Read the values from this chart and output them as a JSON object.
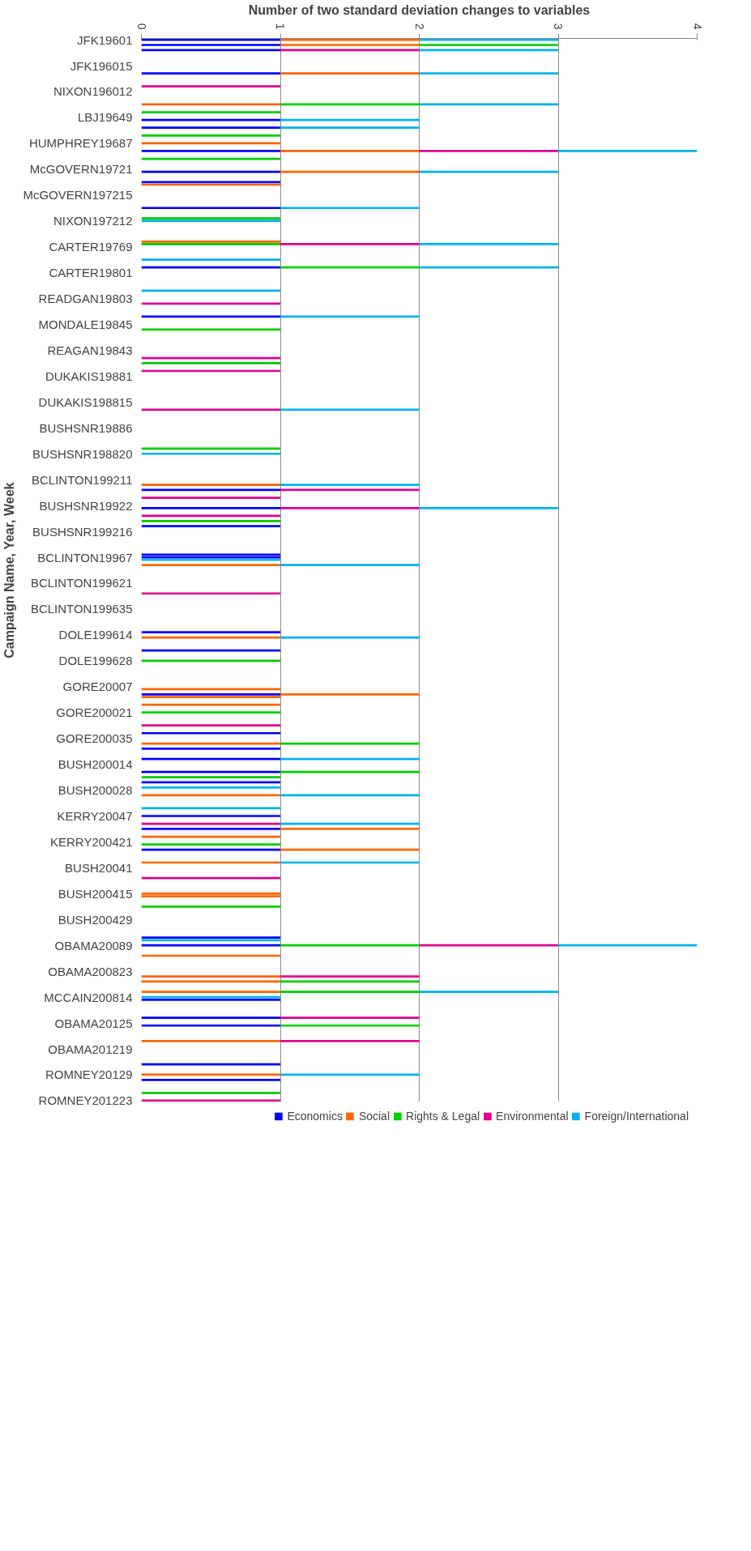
{
  "chart_data": {
    "type": "bar",
    "orientation": "horizontal",
    "stacked": true,
    "xlabel": "Number of two standard deviation changes to variables",
    "ylabel": "Campaign Name, Year, Week",
    "xlim": [
      0,
      4
    ],
    "xticks": [
      0,
      1,
      2,
      3,
      4
    ],
    "grid": "x",
    "legend": "bottom",
    "categories": [
      "JFK19601",
      null,
      null,
      null,
      null,
      null,
      null,
      null,
      null,
      null,
      "JFK196015",
      null,
      null,
      null,
      null,
      null,
      null,
      null,
      null,
      null,
      "NIXON196012",
      null,
      null,
      null,
      null,
      null,
      null,
      null,
      null,
      null,
      "LBJ19649",
      null,
      null,
      null,
      null,
      null,
      null,
      null,
      null,
      null,
      "HUMPHREY19687",
      null,
      null,
      null,
      null,
      null,
      null,
      null,
      null,
      null,
      "McGOVERN19721",
      null,
      null,
      null,
      null,
      null,
      null,
      null,
      null,
      null,
      "McGOVERN197215",
      null,
      null,
      null,
      null,
      null,
      null,
      null,
      null,
      null,
      "NIXON197212",
      null,
      null,
      null,
      null,
      null,
      null,
      null,
      null,
      null,
      "CARTER19769",
      null,
      null,
      null,
      null,
      null,
      null,
      null,
      null,
      null,
      "CARTER19801",
      null,
      null,
      null,
      null,
      null,
      null,
      null,
      null,
      null,
      "READGAN19803",
      null,
      null,
      null,
      null,
      null,
      null,
      null,
      null,
      null,
      "MONDALE19845",
      null,
      null,
      null,
      null,
      null,
      null,
      null,
      null,
      null,
      "REAGAN19843",
      null,
      null,
      null,
      null,
      null,
      null,
      null,
      null,
      null,
      "DUKAKIS19881",
      null,
      null,
      null,
      null,
      null,
      null,
      null,
      null,
      null,
      "DUKAKIS198815",
      null,
      null,
      null,
      null,
      null,
      null,
      null,
      null,
      null,
      "BUSHSNR19886",
      null,
      null,
      null,
      null,
      null,
      null,
      null,
      null,
      null,
      "BUSHSNR198820",
      null,
      null,
      null,
      null,
      null,
      null,
      null,
      null,
      null,
      "BCLINTON199211",
      null,
      null,
      null,
      null,
      null,
      null,
      null,
      null,
      null,
      "BUSHSNR19922",
      null,
      null,
      null,
      null,
      null,
      null,
      null,
      null,
      null,
      "BUSHSNR199216",
      null,
      null,
      null,
      null,
      null,
      null,
      null,
      null,
      null,
      "BCLINTON19967",
      null,
      null,
      null,
      null,
      null,
      null,
      null,
      null,
      null,
      "BCLINTON199621",
      null,
      null,
      null,
      null,
      null,
      null,
      null,
      null,
      null,
      "BCLINTON199635",
      null,
      null,
      null,
      null,
      null,
      null,
      null,
      null,
      null,
      "DOLE199614",
      null,
      null,
      null,
      null,
      null,
      null,
      null,
      null,
      null,
      "DOLE199628",
      null,
      null,
      null,
      null,
      null,
      null,
      null,
      null,
      null,
      "GORE20007",
      null,
      null,
      null,
      null,
      null,
      null,
      null,
      null,
      null,
      "GORE200021",
      null,
      null,
      null,
      null,
      null,
      null,
      null,
      null,
      null,
      "GORE200035",
      null,
      null,
      null,
      null,
      null,
      null,
      null,
      null,
      null,
      "BUSH200014",
      null,
      null,
      null,
      null,
      null,
      null,
      null,
      null,
      null,
      "BUSH200028",
      null,
      null,
      null,
      null,
      null,
      null,
      null,
      null,
      null,
      "KERRY20047",
      null,
      null,
      null,
      null,
      null,
      null,
      null,
      null,
      null,
      "KERRY200421",
      null,
      null,
      null,
      null,
      null,
      null,
      null,
      null,
      null,
      "BUSH20041",
      null,
      null,
      null,
      null,
      null,
      null,
      null,
      null,
      null,
      "BUSH200415",
      null,
      null,
      null,
      null,
      null,
      null,
      null,
      null,
      null,
      "BUSH200429",
      null,
      null,
      null,
      null,
      null,
      null,
      null,
      null,
      null,
      "OBAMA20089",
      null,
      null,
      null,
      null,
      null,
      null,
      null,
      null,
      null,
      "OBAMA200823",
      null,
      null,
      null,
      null,
      null,
      null,
      null,
      null,
      null,
      "MCCAIN200814",
      null,
      null,
      null,
      null,
      null,
      null,
      null,
      null,
      null,
      "OBAMA20125",
      null,
      null,
      null,
      null,
      null,
      null,
      null,
      null,
      null,
      "OBAMA201219",
      null,
      null,
      null,
      null,
      null,
      null,
      null,
      null,
      null,
      "ROMNEY20129",
      null,
      null,
      null,
      null,
      null,
      null,
      null,
      null,
      null,
      "ROMNEY201223"
    ],
    "series": [
      {
        "name": "Economics",
        "color": "#0000ff",
        "values": [
          1,
          0,
          1,
          0,
          1,
          0,
          0,
          0,
          0,
          0,
          0,
          0,
          0,
          1,
          0,
          0,
          0,
          0,
          0,
          0,
          0,
          0,
          0,
          0,
          0,
          0,
          0,
          0,
          0,
          0,
          0,
          1,
          0,
          0,
          1,
          0,
          0,
          0,
          0,
          0,
          0,
          0,
          0,
          1,
          0,
          0,
          0,
          0,
          0,
          0,
          0,
          1,
          0,
          0,
          0,
          1,
          0,
          0,
          0,
          0,
          0,
          0,
          0,
          0,
          0,
          1,
          0,
          0,
          0,
          0,
          0,
          0,
          0,
          0,
          0,
          0,
          0,
          0,
          0,
          0,
          0,
          0,
          0,
          0,
          0,
          0,
          0,
          0,
          1,
          0,
          0,
          0,
          0,
          0,
          0,
          0,
          0,
          0,
          0,
          0,
          0,
          0,
          0,
          0,
          0,
          0,
          0,
          1,
          0,
          0,
          0,
          0,
          0,
          0,
          0,
          0,
          0,
          0,
          0,
          0,
          0,
          0,
          0,
          0,
          0,
          0,
          0,
          0,
          0,
          0,
          0,
          0,
          0,
          0,
          0,
          0,
          0,
          0,
          0,
          0,
          0,
          0,
          0,
          0,
          0,
          0,
          0,
          0,
          0,
          0,
          0,
          0,
          0,
          0,
          0,
          0,
          0,
          0,
          0,
          0,
          0,
          0,
          0,
          0,
          0,
          0,
          0,
          0,
          0,
          0,
          0,
          0,
          0,
          0,
          1,
          0,
          0,
          0,
          0,
          0,
          0,
          1,
          0,
          0,
          0,
          0,
          0,
          0,
          1,
          0,
          0,
          0,
          0,
          0,
          0,
          0,
          0,
          0,
          0,
          1,
          1,
          0,
          0,
          0,
          0,
          0,
          0,
          0,
          0,
          0,
          0,
          0,
          0,
          0,
          0,
          0,
          0,
          0,
          0,
          0,
          0,
          0,
          0,
          0,
          0,
          0,
          0,
          0,
          0,
          1,
          0,
          0,
          0,
          0,
          0,
          0,
          1,
          0,
          0,
          0,
          0,
          0,
          0,
          0,
          0,
          0,
          0,
          0,
          0,
          0,
          0,
          0,
          0,
          1,
          0,
          0,
          0,
          0,
          0,
          0,
          0,
          0,
          0,
          0,
          0,
          0,
          0,
          0,
          1,
          0,
          0,
          0,
          0,
          0,
          1,
          0,
          0,
          0,
          1,
          0,
          0,
          0,
          0,
          1,
          0,
          0,
          0,
          1,
          0,
          0,
          0,
          0,
          0,
          0,
          0,
          0,
          0,
          0,
          0,
          0,
          1,
          0,
          0,
          0,
          0,
          1,
          0,
          0,
          0,
          0,
          0,
          0,
          0,
          1,
          0,
          0,
          0,
          0,
          0,
          0,
          0,
          0,
          0,
          0,
          0,
          0,
          0,
          0,
          0,
          0,
          0,
          0,
          0,
          0,
          0,
          0,
          0,
          0,
          0,
          0,
          0,
          0,
          0,
          0,
          0,
          0,
          0,
          1,
          0,
          0,
          1,
          0,
          0,
          0,
          0,
          0,
          0,
          0,
          0,
          0,
          0,
          0,
          0,
          0,
          0,
          0,
          0,
          0,
          0,
          0,
          0,
          1,
          0,
          0,
          0,
          0,
          0,
          0,
          1,
          0,
          0,
          1,
          0,
          0,
          0,
          0,
          0,
          0,
          0,
          0,
          0,
          0,
          0,
          0,
          0,
          0,
          1,
          0,
          0,
          0,
          0,
          0,
          1,
          0,
          0,
          0,
          0,
          0,
          0,
          0,
          0
        ]
      },
      {
        "name": "Social",
        "color": "#ff6600",
        "values": [
          1,
          0,
          1,
          0,
          0,
          0,
          0,
          0,
          0,
          0,
          0,
          0,
          0,
          1,
          0,
          0,
          0,
          0,
          0,
          0,
          0,
          0,
          0,
          0,
          0,
          1,
          0,
          0,
          0,
          0,
          0,
          0,
          0,
          0,
          0,
          0,
          0,
          0,
          0,
          0,
          1,
          0,
          0,
          1,
          0,
          0,
          0,
          0,
          0,
          0,
          0,
          1,
          0,
          0,
          0,
          0,
          1,
          0,
          0,
          0,
          0,
          0,
          0,
          0,
          0,
          0,
          0,
          0,
          0,
          0,
          0,
          0,
          0,
          0,
          0,
          0,
          0,
          0,
          1,
          0,
          0,
          0,
          0,
          0,
          0,
          0,
          0,
          0,
          0,
          0,
          0,
          0,
          0,
          0,
          0,
          0,
          0,
          0,
          0,
          0,
          0,
          0,
          0,
          0,
          0,
          0,
          0,
          0,
          0,
          0,
          0,
          0,
          0,
          0,
          0,
          0,
          0,
          0,
          0,
          0,
          0,
          0,
          0,
          0,
          0,
          0,
          0,
          0,
          0,
          0,
          0,
          0,
          0,
          0,
          0,
          0,
          0,
          0,
          0,
          0,
          0,
          0,
          0,
          0,
          0,
          0,
          0,
          0,
          0,
          0,
          0,
          0,
          0,
          0,
          0,
          0,
          0,
          0,
          0,
          0,
          0,
          0,
          0,
          0,
          0,
          0,
          0,
          0,
          0,
          0,
          0,
          0,
          1,
          0,
          0,
          0,
          0,
          0,
          0,
          0,
          0,
          0,
          0,
          0,
          0,
          0,
          0,
          0,
          0,
          0,
          0,
          0,
          0,
          0,
          0,
          0,
          0,
          0,
          0,
          0,
          0,
          0,
          0,
          1,
          0,
          0,
          0,
          0,
          0,
          0,
          0,
          0,
          0,
          0,
          0,
          0,
          0,
          0,
          0,
          0,
          0,
          0,
          0,
          0,
          0,
          0,
          0,
          0,
          0,
          0,
          0,
          1,
          0,
          0,
          0,
          0,
          0,
          0,
          0,
          0,
          0,
          0,
          0,
          0,
          0,
          0,
          0,
          0,
          0,
          0,
          0,
          1,
          0,
          1,
          1,
          0,
          0,
          1,
          0,
          0,
          0,
          0,
          0,
          0,
          0,
          0,
          0,
          0,
          0,
          0,
          0,
          0,
          1,
          0,
          0,
          0,
          0,
          0,
          0,
          0,
          0,
          0,
          0,
          0,
          0,
          0,
          0,
          0,
          0,
          0,
          0,
          0,
          1,
          0,
          0,
          0,
          0,
          0,
          0,
          0,
          0,
          0,
          0,
          0,
          0,
          1,
          0,
          0,
          1,
          0,
          0,
          0,
          0,
          1,
          0,
          0,
          0,
          0,
          1,
          0,
          0,
          0,
          0,
          0,
          0,
          0,
          0,
          0,
          0,
          0,
          1,
          1,
          0,
          0,
          0,
          0,
          0,
          0,
          0,
          0,
          0,
          0,
          0,
          0,
          0,
          0,
          0,
          0,
          0,
          0,
          0,
          0,
          0,
          0,
          1,
          0,
          0,
          0,
          0,
          0,
          0,
          0,
          1,
          0,
          1,
          0,
          0,
          0,
          1,
          0,
          0,
          0,
          0,
          0,
          0,
          0,
          0,
          0,
          0,
          0,
          0,
          0,
          0,
          0,
          0,
          0,
          0,
          1,
          0,
          0,
          0,
          0,
          0,
          0,
          0,
          0,
          0,
          0,
          0,
          0,
          1,
          0,
          0,
          0,
          0,
          0,
          0,
          0,
          0,
          0,
          0
        ]
      },
      {
        "name": "Rights & Legal",
        "color": "#00cc00",
        "values": [
          0,
          0,
          1,
          0,
          0,
          0,
          0,
          0,
          0,
          0,
          0,
          0,
          0,
          0,
          0,
          0,
          0,
          0,
          0,
          0,
          0,
          0,
          0,
          0,
          0,
          1,
          0,
          0,
          1,
          0,
          0,
          0,
          0,
          0,
          0,
          0,
          0,
          1,
          0,
          0,
          0,
          0,
          0,
          0,
          0,
          0,
          1,
          0,
          0,
          0,
          0,
          0,
          0,
          0,
          0,
          0,
          0,
          0,
          0,
          0,
          0,
          0,
          0,
          0,
          0,
          0,
          0,
          0,
          0,
          1,
          0,
          0,
          0,
          0,
          0,
          0,
          0,
          0,
          0,
          1,
          0,
          0,
          0,
          0,
          0,
          0,
          0,
          0,
          1,
          0,
          0,
          0,
          0,
          0,
          0,
          0,
          0,
          0,
          0,
          0,
          0,
          0,
          0,
          0,
          0,
          0,
          0,
          0,
          0,
          0,
          0,
          0,
          1,
          0,
          0,
          0,
          0,
          0,
          0,
          0,
          0,
          0,
          0,
          0,
          0,
          1,
          0,
          0,
          0,
          0,
          0,
          0,
          0,
          0,
          0,
          0,
          0,
          0,
          0,
          0,
          0,
          0,
          0,
          0,
          0,
          0,
          0,
          0,
          0,
          0,
          0,
          0,
          0,
          0,
          0,
          0,
          0,
          0,
          1,
          0,
          0,
          0,
          0,
          0,
          0,
          0,
          0,
          0,
          0,
          0,
          0,
          0,
          0,
          0,
          0,
          0,
          0,
          0,
          0,
          0,
          0,
          0,
          0,
          0,
          0,
          0,
          1,
          0,
          0,
          0,
          0,
          0,
          0,
          0,
          0,
          0,
          0,
          0,
          0,
          0,
          0,
          0,
          0,
          0,
          0,
          0,
          0,
          0,
          0,
          0,
          0,
          0,
          0,
          0,
          0,
          0,
          0,
          0,
          0,
          0,
          0,
          0,
          0,
          0,
          0,
          0,
          0,
          0,
          0,
          0,
          0,
          0,
          0,
          0,
          0,
          0,
          0,
          0,
          0,
          0,
          1,
          0,
          0,
          0,
          0,
          0,
          0,
          0,
          0,
          0,
          0,
          0,
          0,
          0,
          0,
          0,
          0,
          0,
          0,
          0,
          1,
          0,
          0,
          0,
          0,
          0,
          0,
          0,
          0,
          0,
          0,
          0,
          1,
          0,
          0,
          0,
          0,
          0,
          0,
          0,
          0,
          0,
          0,
          1,
          0,
          1,
          0,
          0,
          0,
          0,
          0,
          0,
          0,
          0,
          0,
          0,
          0,
          0,
          0,
          0,
          0,
          0,
          0,
          0,
          0,
          0,
          0,
          0,
          0,
          0,
          0,
          1,
          0,
          0,
          0,
          0,
          0,
          0,
          0,
          0,
          0,
          0,
          0,
          0,
          0,
          0,
          0,
          0,
          0,
          0,
          0,
          0,
          0,
          0,
          0,
          1,
          0,
          0,
          0,
          0,
          0,
          0,
          0,
          0,
          0,
          0,
          0,
          0,
          0,
          0,
          1,
          0,
          0,
          0,
          0,
          0,
          0,
          0,
          0,
          0,
          0,
          0,
          0,
          0,
          1,
          0,
          0,
          0,
          1,
          0,
          0,
          0,
          0,
          0,
          0,
          0,
          0,
          0,
          0,
          0,
          0,
          1,
          0,
          0,
          0,
          0,
          0,
          0,
          0,
          0,
          0,
          0,
          0,
          0,
          0,
          0,
          0,
          0,
          0,
          0,
          0,
          0,
          0,
          0,
          0,
          0,
          0,
          1,
          0,
          0,
          0
        ]
      },
      {
        "name": "Environmental",
        "color": "#e0008c",
        "values": [
          0,
          0,
          0,
          0,
          1,
          0,
          0,
          0,
          0,
          0,
          0,
          0,
          0,
          0,
          0,
          0,
          0,
          0,
          1,
          0,
          0,
          0,
          0,
          0,
          0,
          0,
          0,
          0,
          0,
          0,
          0,
          0,
          0,
          0,
          0,
          0,
          0,
          0,
          0,
          0,
          0,
          0,
          0,
          1,
          0,
          0,
          0,
          0,
          0,
          0,
          0,
          0,
          0,
          0,
          0,
          0,
          0,
          0,
          0,
          0,
          0,
          0,
          0,
          0,
          0,
          0,
          0,
          0,
          0,
          0,
          0,
          0,
          0,
          0,
          0,
          0,
          0,
          0,
          0,
          1,
          0,
          0,
          0,
          0,
          0,
          0,
          0,
          0,
          0,
          0,
          0,
          0,
          0,
          0,
          0,
          0,
          0,
          0,
          0,
          0,
          0,
          0,
          1,
          0,
          0,
          0,
          0,
          0,
          0,
          0,
          0,
          0,
          0,
          0,
          0,
          0,
          0,
          0,
          0,
          0,
          0,
          0,
          0,
          1,
          0,
          0,
          0,
          0,
          1,
          0,
          0,
          0,
          0,
          0,
          0,
          0,
          0,
          0,
          0,
          0,
          0,
          0,
          0,
          1,
          0,
          0,
          0,
          0,
          0,
          0,
          0,
          0,
          0,
          0,
          0,
          0,
          0,
          0,
          0,
          0,
          0,
          0,
          0,
          0,
          0,
          0,
          0,
          0,
          0,
          0,
          0,
          0,
          0,
          0,
          1,
          0,
          0,
          1,
          0,
          0,
          0,
          1,
          0,
          0,
          1,
          0,
          0,
          0,
          0,
          0,
          0,
          0,
          0,
          0,
          0,
          0,
          0,
          0,
          0,
          0,
          0,
          0,
          0,
          0,
          0,
          0,
          0,
          0,
          0,
          0,
          0,
          0,
          0,
          0,
          1,
          0,
          0,
          0,
          0,
          0,
          0,
          0,
          0,
          0,
          0,
          0,
          0,
          0,
          0,
          0,
          0,
          0,
          0,
          0,
          0,
          0,
          0,
          0,
          0,
          0,
          0,
          0,
          0,
          0,
          0,
          0,
          0,
          0,
          0,
          0,
          0,
          0,
          0,
          0,
          0,
          0,
          0,
          0,
          0,
          0,
          0,
          0,
          0,
          0,
          0,
          1,
          0,
          0,
          0,
          0,
          0,
          0,
          0,
          0,
          0,
          0,
          0,
          0,
          0,
          0,
          0,
          0,
          0,
          0,
          0,
          0,
          0,
          0,
          0,
          0,
          0,
          0,
          0,
          0,
          0,
          0,
          0,
          0,
          0,
          0,
          0,
          0,
          0,
          1,
          0,
          0,
          0,
          0,
          0,
          0,
          0,
          0,
          0,
          0,
          0,
          0,
          0,
          0,
          0,
          0,
          0,
          0,
          0,
          0,
          1,
          0,
          0,
          0,
          0,
          0,
          0,
          0,
          0,
          0,
          0,
          0,
          0,
          0,
          0,
          0,
          0,
          0,
          0,
          0,
          0,
          0,
          0,
          0,
          0,
          0,
          1,
          0,
          0,
          0,
          0,
          0,
          0,
          0,
          0,
          0,
          0,
          0,
          1,
          0,
          0,
          0,
          0,
          0,
          0,
          0,
          0,
          0,
          0,
          0,
          0,
          0,
          0,
          0,
          1,
          0,
          0,
          0,
          0,
          0,
          0,
          0,
          0,
          1,
          0,
          0,
          0,
          0,
          0,
          0,
          0,
          0,
          0,
          0,
          0,
          0,
          0,
          0,
          0,
          0,
          0,
          0,
          0,
          0,
          0,
          0,
          1
        ]
      },
      {
        "name": "Foreign/International",
        "color": "#00b0f0",
        "values": [
          1,
          0,
          0,
          0,
          1,
          0,
          0,
          0,
          0,
          0,
          0,
          0,
          0,
          1,
          0,
          0,
          0,
          0,
          0,
          0,
          0,
          0,
          0,
          0,
          0,
          1,
          0,
          0,
          0,
          0,
          0,
          1,
          0,
          0,
          1,
          0,
          0,
          0,
          0,
          0,
          0,
          0,
          0,
          1,
          0,
          0,
          0,
          0,
          0,
          0,
          0,
          1,
          0,
          0,
          0,
          0,
          0,
          0,
          0,
          0,
          0,
          0,
          0,
          0,
          0,
          1,
          0,
          0,
          0,
          0,
          1,
          0,
          0,
          0,
          0,
          0,
          0,
          0,
          0,
          1,
          0,
          0,
          0,
          0,
          0,
          1,
          0,
          0,
          1,
          0,
          0,
          0,
          0,
          0,
          0,
          0,
          0,
          1,
          0,
          0,
          0,
          0,
          0,
          0,
          0,
          0,
          0,
          1,
          0,
          0,
          0,
          0,
          0,
          0,
          0,
          0,
          0,
          0,
          0,
          0,
          0,
          0,
          0,
          0,
          0,
          0,
          0,
          0,
          0,
          0,
          0,
          0,
          0,
          0,
          0,
          0,
          0,
          0,
          0,
          0,
          0,
          0,
          0,
          1,
          0,
          0,
          0,
          0,
          0,
          0,
          0,
          0,
          0,
          0,
          0,
          0,
          0,
          0,
          0,
          0,
          1,
          0,
          0,
          0,
          0,
          0,
          0,
          0,
          0,
          0,
          0,
          0,
          1,
          0,
          0,
          0,
          0,
          0,
          0,
          0,
          0,
          1,
          0,
          0,
          0,
          0,
          0,
          0,
          0,
          0,
          0,
          0,
          0,
          0,
          0,
          0,
          0,
          0,
          0,
          0,
          0,
          1,
          0,
          1,
          0,
          0,
          0,
          0,
          0,
          0,
          0,
          0,
          0,
          0,
          0,
          0,
          0,
          0,
          0,
          0,
          0,
          0,
          0,
          0,
          0,
          0,
          0,
          0,
          0,
          0,
          0,
          1,
          0,
          0,
          0,
          0,
          0,
          0,
          0,
          0,
          0,
          0,
          0,
          0,
          0,
          0,
          0,
          0,
          0,
          0,
          0,
          0,
          0,
          0,
          0,
          0,
          0,
          0,
          0,
          0,
          0,
          0,
          0,
          0,
          0,
          0,
          0,
          0,
          0,
          0,
          0,
          0,
          0,
          0,
          0,
          0,
          0,
          0,
          1,
          0,
          0,
          0,
          0,
          0,
          0,
          0,
          0,
          0,
          0,
          1,
          0,
          0,
          1,
          0,
          0,
          0,
          0,
          1,
          0,
          0,
          0,
          0,
          0,
          1,
          0,
          0,
          0,
          0,
          0,
          0,
          0,
          0,
          0,
          0,
          0,
          0,
          0,
          0,
          1,
          0,
          0,
          0,
          0,
          0,
          0,
          0,
          0,
          0,
          0,
          0,
          0,
          0,
          0,
          0,
          0,
          0,
          0,
          0,
          0,
          0,
          0,
          0,
          0,
          0,
          0,
          0,
          0,
          0,
          1,
          0,
          1,
          0,
          0,
          0,
          0,
          0,
          0,
          0,
          0,
          0,
          0,
          0,
          0,
          0,
          0,
          0,
          0,
          0,
          1,
          0,
          1,
          0,
          0,
          0,
          0,
          0,
          0,
          0,
          0,
          0,
          0,
          0,
          0,
          0,
          0,
          0,
          0,
          0,
          0,
          0,
          0,
          0,
          0,
          0,
          0,
          0,
          0,
          0,
          0,
          0,
          1,
          0,
          0,
          0,
          0,
          0,
          0,
          0,
          0,
          0,
          0
        ]
      }
    ]
  }
}
